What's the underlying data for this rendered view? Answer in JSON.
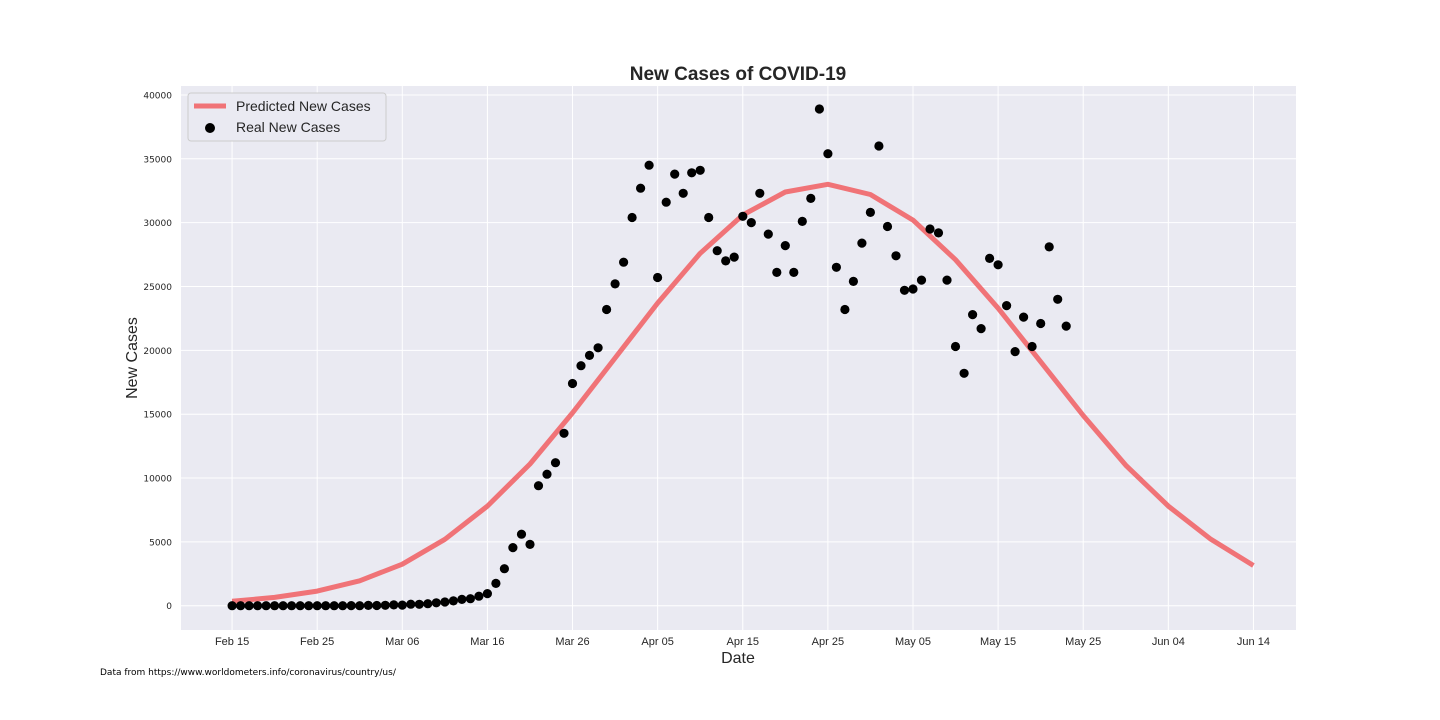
{
  "chart_data": {
    "type": "line",
    "title": "New Cases of COVID-19",
    "xlabel": "Date",
    "ylabel": "New Cases",
    "x_axis_type": "date",
    "xlim": [
      "2020-02-09",
      "2020-06-19"
    ],
    "ylim": [
      -1900,
      40700
    ],
    "x_ticks": [
      {
        "date": "2020-02-15",
        "label": "Feb 15"
      },
      {
        "date": "2020-02-25",
        "label": "Feb 25"
      },
      {
        "date": "2020-03-06",
        "label": "Mar 06"
      },
      {
        "date": "2020-03-16",
        "label": "Mar 16"
      },
      {
        "date": "2020-03-26",
        "label": "Mar 26"
      },
      {
        "date": "2020-04-05",
        "label": "Apr 05"
      },
      {
        "date": "2020-04-15",
        "label": "Apr 15"
      },
      {
        "date": "2020-04-25",
        "label": "Apr 25"
      },
      {
        "date": "2020-05-05",
        "label": "May 05"
      },
      {
        "date": "2020-05-15",
        "label": "May 15"
      },
      {
        "date": "2020-05-25",
        "label": "May 25"
      },
      {
        "date": "2020-06-04",
        "label": "Jun 04"
      },
      {
        "date": "2020-06-14",
        "label": "Jun 14"
      }
    ],
    "y_ticks": [
      0,
      5000,
      10000,
      15000,
      20000,
      25000,
      30000,
      35000,
      40000
    ],
    "grid": true,
    "legend_position": "top-left",
    "series": [
      {
        "name": "Predicted New Cases",
        "type": "line",
        "color": "#f07377",
        "points": [
          [
            "2020-02-15",
            350
          ],
          [
            "2020-02-20",
            650
          ],
          [
            "2020-02-25",
            1150
          ],
          [
            "2020-03-01",
            1950
          ],
          [
            "2020-03-06",
            3250
          ],
          [
            "2020-03-11",
            5200
          ],
          [
            "2020-03-16",
            7800
          ],
          [
            "2020-03-21",
            11100
          ],
          [
            "2020-03-26",
            15100
          ],
          [
            "2020-03-31",
            19400
          ],
          [
            "2020-04-05",
            23700
          ],
          [
            "2020-04-10",
            27600
          ],
          [
            "2020-04-15",
            30600
          ],
          [
            "2020-04-20",
            32400
          ],
          [
            "2020-04-25",
            33000
          ],
          [
            "2020-04-30",
            32200
          ],
          [
            "2020-05-05",
            30200
          ],
          [
            "2020-05-10",
            27100
          ],
          [
            "2020-05-15",
            23300
          ],
          [
            "2020-05-20",
            19100
          ],
          [
            "2020-05-25",
            14900
          ],
          [
            "2020-05-30",
            11000
          ],
          [
            "2020-06-04",
            7800
          ],
          [
            "2020-06-09",
            5200
          ],
          [
            "2020-06-14",
            3150
          ]
        ]
      },
      {
        "name": "Real New Cases",
        "type": "scatter",
        "color": "#000000",
        "points": [
          [
            "2020-02-15",
            0
          ],
          [
            "2020-02-16",
            0
          ],
          [
            "2020-02-17",
            0
          ],
          [
            "2020-02-18",
            0
          ],
          [
            "2020-02-19",
            0
          ],
          [
            "2020-02-20",
            0
          ],
          [
            "2020-02-21",
            1
          ],
          [
            "2020-02-22",
            0
          ],
          [
            "2020-02-23",
            0
          ],
          [
            "2020-02-24",
            0
          ],
          [
            "2020-02-25",
            0
          ],
          [
            "2020-02-26",
            0
          ],
          [
            "2020-02-27",
            0
          ],
          [
            "2020-02-28",
            1
          ],
          [
            "2020-02-29",
            8
          ],
          [
            "2020-03-01",
            6
          ],
          [
            "2020-03-02",
            24
          ],
          [
            "2020-03-03",
            20
          ],
          [
            "2020-03-04",
            31
          ],
          [
            "2020-03-05",
            68
          ],
          [
            "2020-03-06",
            50
          ],
          [
            "2020-03-07",
            120
          ],
          [
            "2020-03-08",
            110
          ],
          [
            "2020-03-09",
            160
          ],
          [
            "2020-03-10",
            230
          ],
          [
            "2020-03-11",
            290
          ],
          [
            "2020-03-12",
            380
          ],
          [
            "2020-03-13",
            500
          ],
          [
            "2020-03-14",
            550
          ],
          [
            "2020-03-15",
            750
          ],
          [
            "2020-03-16",
            950
          ],
          [
            "2020-03-17",
            1750
          ],
          [
            "2020-03-18",
            2900
          ],
          [
            "2020-03-19",
            4550
          ],
          [
            "2020-03-20",
            5600
          ],
          [
            "2020-03-21",
            4800
          ],
          [
            "2020-03-22",
            9400
          ],
          [
            "2020-03-23",
            10300
          ],
          [
            "2020-03-24",
            11200
          ],
          [
            "2020-03-25",
            13500
          ],
          [
            "2020-03-26",
            17400
          ],
          [
            "2020-03-27",
            18800
          ],
          [
            "2020-03-28",
            19600
          ],
          [
            "2020-03-29",
            20200
          ],
          [
            "2020-03-30",
            23200
          ],
          [
            "2020-03-31",
            25200
          ],
          [
            "2020-04-01",
            26900
          ],
          [
            "2020-04-02",
            30400
          ],
          [
            "2020-04-03",
            32700
          ],
          [
            "2020-04-04",
            34500
          ],
          [
            "2020-04-05",
            25700
          ],
          [
            "2020-04-06",
            31600
          ],
          [
            "2020-04-07",
            33800
          ],
          [
            "2020-04-08",
            32300
          ],
          [
            "2020-04-09",
            33900
          ],
          [
            "2020-04-10",
            34100
          ],
          [
            "2020-04-11",
            30400
          ],
          [
            "2020-04-12",
            27800
          ],
          [
            "2020-04-13",
            27000
          ],
          [
            "2020-04-14",
            27300
          ],
          [
            "2020-04-15",
            30500
          ],
          [
            "2020-04-16",
            30000
          ],
          [
            "2020-04-17",
            32300
          ],
          [
            "2020-04-18",
            29100
          ],
          [
            "2020-04-19",
            26100
          ],
          [
            "2020-04-20",
            28200
          ],
          [
            "2020-04-21",
            26100
          ],
          [
            "2020-04-22",
            30100
          ],
          [
            "2020-04-23",
            31900
          ],
          [
            "2020-04-24",
            38900
          ],
          [
            "2020-04-25",
            35400
          ],
          [
            "2020-04-26",
            26500
          ],
          [
            "2020-04-27",
            23200
          ],
          [
            "2020-04-28",
            25400
          ],
          [
            "2020-04-29",
            28400
          ],
          [
            "2020-04-30",
            30800
          ],
          [
            "2020-05-01",
            36000
          ],
          [
            "2020-05-02",
            29700
          ],
          [
            "2020-05-03",
            27400
          ],
          [
            "2020-05-04",
            24700
          ],
          [
            "2020-05-05",
            24800
          ],
          [
            "2020-05-06",
            25500
          ],
          [
            "2020-05-07",
            29500
          ],
          [
            "2020-05-08",
            29200
          ],
          [
            "2020-05-09",
            25500
          ],
          [
            "2020-05-10",
            20300
          ],
          [
            "2020-05-11",
            18200
          ],
          [
            "2020-05-12",
            22800
          ],
          [
            "2020-05-13",
            21700
          ],
          [
            "2020-05-14",
            27200
          ],
          [
            "2020-05-15",
            26700
          ],
          [
            "2020-05-16",
            23500
          ],
          [
            "2020-05-17",
            19900
          ],
          [
            "2020-05-18",
            22600
          ],
          [
            "2020-05-19",
            20300
          ],
          [
            "2020-05-20",
            22100
          ],
          [
            "2020-05-21",
            28100
          ],
          [
            "2020-05-22",
            24000
          ],
          [
            "2020-05-23",
            21900
          ]
        ]
      }
    ]
  },
  "source_note": "Data from https://www.worldometers.info/coronavirus/country/us/"
}
